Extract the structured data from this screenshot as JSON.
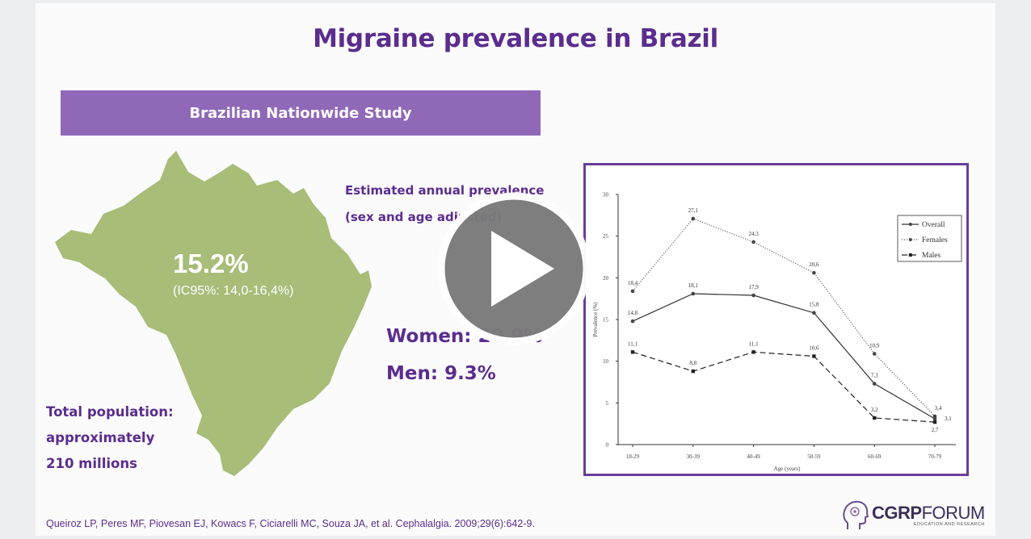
{
  "slide": {
    "title": "Migraine prevalence in Brazil",
    "banner": "Brazilian Nationwide Study",
    "prevalence": "15.2%",
    "prevalence_ci": "(IC95%: 14,0-16,4%)",
    "estimated_line1": "Estimated annual prevalence",
    "estimated_line2": "(sex and age adjusted)",
    "women": "Women: 20.9%",
    "men": "Men: 9.3%",
    "population_line1": "Total population:",
    "population_line2": "approximately",
    "population_line3": "210 millions",
    "citation": "Queiroz LP, Peres MF, Piovesan EJ, Kowacs F, Ciciarelli MC, Souza JA, et al. Cephalalgia. 2009;29(6):642-9.",
    "logo_main_bold": "CGRP",
    "logo_main_light": "FORUM",
    "logo_sub": "EDUCATION AND RESEARCH"
  },
  "colors": {
    "accent": "#5b2d8e",
    "banner": "#9068b8",
    "map": "#a7bd78",
    "play_bg": "#7a7a7a"
  },
  "video": {
    "play_icon": "play-icon"
  },
  "chart_data": {
    "type": "line",
    "x": [
      "18-29",
      "30-39",
      "40-49",
      "50-59",
      "60-69",
      "70-79"
    ],
    "xlabel": "Age (years)",
    "ylabel": "Prevalence (%)",
    "ylim": [
      0,
      30
    ],
    "yticks": [
      0,
      5,
      10,
      15,
      20,
      25,
      30
    ],
    "legend": "top-right",
    "series": [
      {
        "name": "Overall",
        "style": "solid",
        "values": [
          14.8,
          18.1,
          17.9,
          15.8,
          7.3,
          3.1
        ],
        "labels": [
          "14,8",
          "18,1",
          "17,9",
          "15,8",
          "7,3",
          ""
        ]
      },
      {
        "name": "Females",
        "style": "dotted",
        "values": [
          18.4,
          27.1,
          24.3,
          20.6,
          10.9,
          3.4
        ],
        "labels": [
          "18,4",
          "27,1",
          "24,3",
          "20,6",
          "10,9",
          "3,4"
        ]
      },
      {
        "name": "Males",
        "style": "dashed",
        "values": [
          11.1,
          8.8,
          11.1,
          10.6,
          3.2,
          2.7
        ],
        "labels": [
          "11,1",
          "8,8",
          "11,1",
          "10,6",
          "3,2",
          "2,7"
        ]
      }
    ],
    "extra_labels": [
      "3,1"
    ]
  }
}
